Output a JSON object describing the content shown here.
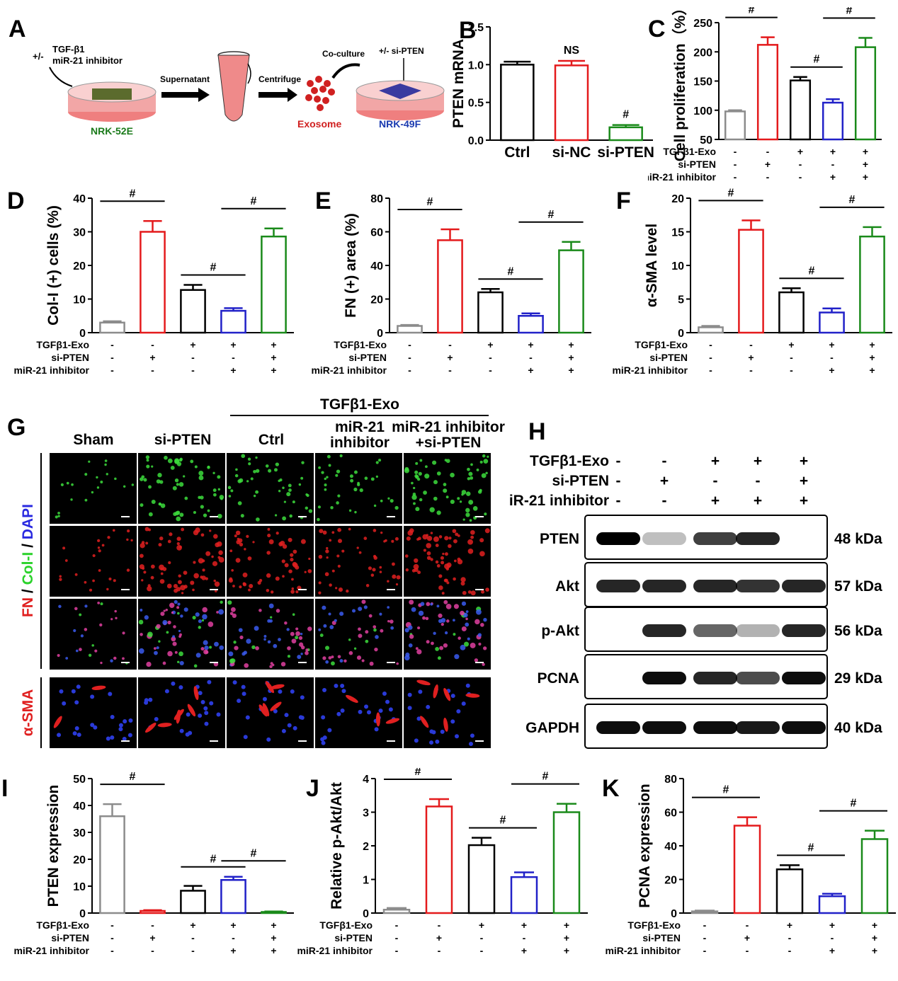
{
  "colors": {
    "ctrl": "#8c8c8c",
    "red": "#e41a1c",
    "black": "#000000",
    "blue": "#2121c8",
    "green": "#1a8a1a"
  },
  "panelA": {
    "label": "A",
    "treat_prefix": "+/-",
    "treat_lines": [
      "TGF-β1",
      "miR-21 inhibitor"
    ],
    "step1": "Supernatant",
    "step2": "Centrifuge",
    "coculture": "Co-culture",
    "si": "+/- si-PTEN",
    "cell1": "NRK-52E",
    "exosome": "Exosome",
    "cell2": "NRK-49F"
  },
  "chart_data": [
    {
      "id": "B",
      "type": "bar",
      "label": "B",
      "ylabel": "PTEN mRNA",
      "categories": [
        "Ctrl",
        "si-NC",
        "si-PTEN"
      ],
      "values": [
        1.0,
        0.99,
        0.17
      ],
      "errors": [
        0.04,
        0.06,
        0.03
      ],
      "ylim": [
        0,
        1.5
      ],
      "yticks": [
        "0.0",
        "0.5",
        "1.0",
        "1.5"
      ],
      "annotations": [
        "",
        "NS",
        "#"
      ]
    },
    {
      "id": "C",
      "type": "bar",
      "label": "C",
      "ylabel": "Cell proliferation（%）",
      "values": [
        98,
        212,
        151,
        113,
        208
      ],
      "errors": [
        2,
        13,
        6,
        6,
        16
      ],
      "ylim": [
        50,
        250
      ],
      "yticks": [
        "50",
        "100",
        "150",
        "200",
        "250"
      ],
      "sig": [
        "#",
        "#",
        "#"
      ],
      "conditions": [
        {
          "name": "TGFβ1-Exo",
          "v": [
            "-",
            "-",
            "+",
            "+",
            "+"
          ]
        },
        {
          "name": "si-PTEN",
          "v": [
            "-",
            "+",
            "-",
            "-",
            "+"
          ]
        },
        {
          "name": "miR-21 inhibitor",
          "v": [
            "-",
            "-",
            "-",
            "+",
            "+"
          ]
        }
      ]
    },
    {
      "id": "D",
      "type": "bar",
      "label": "D",
      "ylabel": "Col-I (+) cells (%)",
      "values": [
        3.0,
        30.0,
        12.7,
        6.5,
        28.6
      ],
      "errors": [
        0.4,
        3.2,
        1.5,
        0.8,
        2.4
      ],
      "ylim": [
        0,
        40
      ],
      "yticks": [
        "0",
        "10",
        "20",
        "30",
        "40"
      ],
      "sig": [
        "#",
        "#",
        "#"
      ],
      "conditions": [
        {
          "name": "TGFβ1-Exo",
          "v": [
            "-",
            "-",
            "+",
            "+",
            "+"
          ]
        },
        {
          "name": "si-PTEN",
          "v": [
            "-",
            "+",
            "-",
            "-",
            "+"
          ]
        },
        {
          "name": "miR-21 inhibitor",
          "v": [
            "-",
            "-",
            "-",
            "+",
            "+"
          ]
        }
      ]
    },
    {
      "id": "E",
      "type": "bar",
      "label": "E",
      "ylabel": "FN (+) area (%)",
      "values": [
        4,
        55,
        24,
        10,
        49
      ],
      "errors": [
        0.6,
        6.5,
        2,
        1.5,
        5
      ],
      "ylim": [
        0,
        80
      ],
      "yticks": [
        "0",
        "20",
        "40",
        "60",
        "80"
      ],
      "sig": [
        "#",
        "#",
        "#"
      ],
      "conditions": [
        {
          "name": "TGFβ1-Exo",
          "v": [
            "-",
            "-",
            "+",
            "+",
            "+"
          ]
        },
        {
          "name": "si-PTEN",
          "v": [
            "-",
            "+",
            "-",
            "-",
            "+"
          ]
        },
        {
          "name": "miR-21 inhibitor",
          "v": [
            "-",
            "-",
            "-",
            "+",
            "+"
          ]
        }
      ]
    },
    {
      "id": "F",
      "type": "bar",
      "label": "F",
      "ylabel": "α-SMA level",
      "values": [
        0.8,
        15.3,
        6.0,
        3.0,
        14.3
      ],
      "errors": [
        0.2,
        1.4,
        0.6,
        0.6,
        1.4
      ],
      "ylim": [
        0,
        20
      ],
      "yticks": [
        "0",
        "5",
        "10",
        "15",
        "20"
      ],
      "sig": [
        "#",
        "#",
        "#"
      ],
      "conditions": [
        {
          "name": "TGFβ1-Exo",
          "v": [
            "-",
            "-",
            "+",
            "+",
            "+"
          ]
        },
        {
          "name": "si-PTEN",
          "v": [
            "-",
            "+",
            "-",
            "-",
            "+"
          ]
        },
        {
          "name": "miR-21 inhibitor",
          "v": [
            "-",
            "-",
            "-",
            "+",
            "+"
          ]
        }
      ]
    },
    {
      "id": "I",
      "type": "bar",
      "label": "I",
      "ylabel": "PTEN expression",
      "values": [
        36,
        0.8,
        8.3,
        12.3,
        0.4
      ],
      "errors": [
        4.5,
        0.3,
        1.8,
        1.2,
        0.2
      ],
      "ylim": [
        0,
        50
      ],
      "yticks": [
        "0",
        "10",
        "20",
        "30",
        "40",
        "50"
      ],
      "sig": [
        "#",
        "#",
        "#"
      ],
      "conditions": [
        {
          "name": "TGFβ1-Exo",
          "v": [
            "-",
            "-",
            "+",
            "+",
            "+"
          ]
        },
        {
          "name": "si-PTEN",
          "v": [
            "-",
            "+",
            "-",
            "-",
            "+"
          ]
        },
        {
          "name": "miR-21 inhibitor",
          "v": [
            "-",
            "-",
            "-",
            "+",
            "+"
          ]
        }
      ]
    },
    {
      "id": "J",
      "type": "bar",
      "label": "J",
      "ylabel": "Relative p-Akt/Akt",
      "values": [
        0.1,
        3.17,
        2.02,
        1.07,
        3.0
      ],
      "errors": [
        0.05,
        0.22,
        0.22,
        0.14,
        0.25
      ],
      "ylim": [
        0,
        4
      ],
      "yticks": [
        "0",
        "1",
        "2",
        "3",
        "4"
      ],
      "sig": [
        "#",
        "#",
        "#"
      ],
      "conditions": [
        {
          "name": "TGFβ1-Exo",
          "v": [
            "-",
            "-",
            "+",
            "+",
            "+"
          ]
        },
        {
          "name": "si-PTEN",
          "v": [
            "-",
            "+",
            "-",
            "-",
            "+"
          ]
        },
        {
          "name": "miR-21 inhibitor",
          "v": [
            "-",
            "-",
            "-",
            "+",
            "+"
          ]
        }
      ]
    },
    {
      "id": "K",
      "type": "bar",
      "label": "K",
      "ylabel": "PCNA expression",
      "values": [
        1,
        52,
        26,
        10,
        44
      ],
      "errors": [
        0.5,
        5,
        2.5,
        1.5,
        5
      ],
      "ylim": [
        0,
        80
      ],
      "yticks": [
        "0",
        "20",
        "40",
        "60",
        "80"
      ],
      "sig": [
        "#",
        "#",
        "#"
      ],
      "conditions": [
        {
          "name": "TGFβ1-Exo",
          "v": [
            "-",
            "-",
            "+",
            "+",
            "+"
          ]
        },
        {
          "name": "si-PTEN",
          "v": [
            "-",
            "+",
            "-",
            "-",
            "+"
          ]
        },
        {
          "name": "miR-21 inhibitor",
          "v": [
            "-",
            "-",
            "-",
            "+",
            "+"
          ]
        }
      ]
    }
  ],
  "panelG": {
    "label": "G",
    "group_header": "TGFβ1-Exo",
    "columns": [
      "Sham",
      "si-PTEN",
      "Ctrl",
      "miR-21\ninhibitor",
      "miR-21 inhibitor\n+si-PTEN"
    ],
    "stain_fn": "FN",
    "stain_sep1": " / ",
    "stain_col": "Col-I",
    "stain_sep2": " / ",
    "stain_dapi": "DAPI",
    "stain_sma": "α-SMA",
    "rows": [
      "col-I",
      "fn",
      "merge",
      "sma"
    ],
    "intensity": [
      [
        0.2,
        0.8,
        0.6,
        0.45,
        0.85
      ],
      [
        0.25,
        0.95,
        0.8,
        0.6,
        0.95
      ],
      [
        0.3,
        0.95,
        0.8,
        0.6,
        0.95
      ],
      [
        0.2,
        0.55,
        0.45,
        0.3,
        0.6
      ]
    ]
  },
  "panelH": {
    "label": "H",
    "conditions": [
      {
        "name": "TGFβ1-Exo",
        "v": [
          "-",
          "-",
          "+",
          "+",
          "+"
        ]
      },
      {
        "name": "si-PTEN",
        "v": [
          "-",
          "+",
          "-",
          "-",
          "+"
        ]
      },
      {
        "name": "miR-21 inhibitor",
        "v": [
          "-",
          "-",
          "+",
          "+",
          "+"
        ]
      }
    ],
    "blots": [
      {
        "name": "PTEN",
        "kda": "48 kDa",
        "bands": [
          1.0,
          0.25,
          0.75,
          0.85,
          0.0
        ]
      },
      {
        "name": "Akt",
        "kda": "57 kDa",
        "bands": [
          0.85,
          0.85,
          0.85,
          0.8,
          0.85
        ]
      },
      {
        "name": "p-Akt",
        "kda": "56 kDa",
        "bands": [
          0.0,
          0.85,
          0.6,
          0.3,
          0.85
        ]
      },
      {
        "name": "PCNA",
        "kda": "29 kDa",
        "bands": [
          0.0,
          0.95,
          0.85,
          0.7,
          0.95
        ]
      },
      {
        "name": "GAPDH",
        "kda": "40 kDa",
        "bands": [
          0.95,
          0.95,
          0.95,
          0.9,
          0.95
        ]
      }
    ]
  }
}
